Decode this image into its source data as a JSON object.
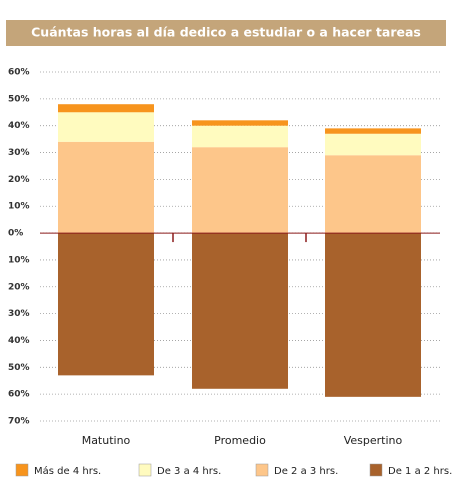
{
  "chart_data": {
    "type": "bar",
    "title": "Cuántas horas al día dedico a estudiar o a hacer tareas",
    "categories": [
      "Matutino",
      "Promedio",
      "Vespertino"
    ],
    "series": [
      {
        "name": "Más de 4 hrs.",
        "color": "#f7941d",
        "values": [
          3,
          2,
          2
        ]
      },
      {
        "name": "De 3 a 4 hrs.",
        "color": "#fffbbf",
        "values": [
          11,
          8,
          8
        ]
      },
      {
        "name": "De 2 a 3 hrs.",
        "color": "#fdc68a",
        "values": [
          34,
          32,
          29
        ]
      },
      {
        "name": "De 1 a 2 hrs.",
        "color": "#a8622c",
        "values": [
          -53,
          -58,
          -61
        ]
      }
    ],
    "ylim": [
      -70,
      60
    ],
    "yticks": [
      {
        "value": 60,
        "label": "60%"
      },
      {
        "value": 50,
        "label": "50%"
      },
      {
        "value": 40,
        "label": "40%"
      },
      {
        "value": 30,
        "label": "30%"
      },
      {
        "value": 20,
        "label": "20%"
      },
      {
        "value": 10,
        "label": "10%"
      },
      {
        "value": 0,
        "label": "0%"
      },
      {
        "value": -10,
        "label": "10%"
      },
      {
        "value": -20,
        "label": "20%"
      },
      {
        "value": -30,
        "label": "30%"
      },
      {
        "value": -40,
        "label": "40%"
      },
      {
        "value": -50,
        "label": "50%"
      },
      {
        "value": -60,
        "label": "60%"
      },
      {
        "value": -70,
        "label": "70%"
      }
    ],
    "grid": true
  }
}
